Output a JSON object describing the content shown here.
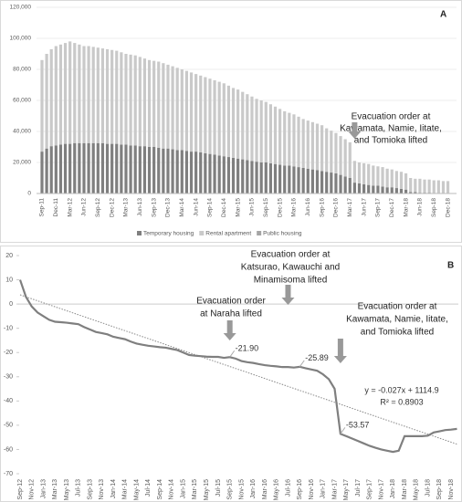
{
  "chart_data": [
    {
      "type": "bar",
      "stacked": true,
      "panel": "A",
      "annotation": [
        "Evacuation order at",
        "Kawamata, Namie, Iitate,",
        "and Tomioka lifted"
      ],
      "categories": [
        "Sep-11",
        null,
        null,
        "Dec-11",
        null,
        null,
        "Mar-12",
        null,
        null,
        "Jun-12",
        null,
        null,
        "Sep-12",
        null,
        null,
        "Dec-12",
        null,
        null,
        "Mar-13",
        null,
        null,
        "Jun-13",
        null,
        null,
        "Sep-13",
        null,
        null,
        "Dec-13",
        null,
        null,
        "Mar-14",
        null,
        null,
        "Jun-14",
        null,
        null,
        "Sep-14",
        null,
        null,
        "Dec-14",
        null,
        null,
        "Mar-15",
        null,
        null,
        "Jun-15",
        null,
        null,
        "Sep-15",
        null,
        null,
        "Dec-15",
        null,
        null,
        "Mar-16",
        null,
        null,
        "Jun-16",
        null,
        null,
        "Sep-16",
        null,
        null,
        "Dec-16",
        null,
        null,
        "Mar-17",
        null,
        null,
        "Jun-17",
        null,
        null,
        "Sep-17",
        null,
        null,
        "Dec-17",
        null,
        null,
        "Mar-18",
        null,
        null,
        "Jun-18",
        null,
        null,
        "Sep-18",
        null,
        null,
        "Dec-18"
      ],
      "series": [
        {
          "name": "Temporary housing",
          "color": "#7f7f7f",
          "values": [
            27000,
            29000,
            30500,
            31000,
            31500,
            32000,
            32000,
            32500,
            32500,
            32500,
            32500,
            32500,
            32500,
            32500,
            32000,
            32000,
            32000,
            31500,
            31500,
            31000,
            31000,
            30500,
            30500,
            30000,
            30000,
            29500,
            29000,
            29000,
            28500,
            28000,
            28000,
            27500,
            27000,
            27000,
            26500,
            26000,
            25500,
            25000,
            24500,
            24000,
            23500,
            23000,
            22500,
            22000,
            21500,
            21000,
            20500,
            20000,
            20000,
            19500,
            19000,
            18500,
            18000,
            18000,
            17500,
            17000,
            16500,
            16000,
            15500,
            15000,
            14500,
            14000,
            13500,
            13000,
            12000,
            11000,
            10000,
            7000,
            6500,
            6000,
            5500,
            5000,
            5000,
            4500,
            4000,
            4000,
            3500,
            3000,
            2500,
            1000,
            1000,
            500,
            500,
            500,
            0,
            0,
            0,
            0
          ]
        },
        {
          "name": "Rental apartment",
          "color": "#c9c9c9",
          "values": [
            59000,
            61000,
            62500,
            64000,
            64500,
            65000,
            66000,
            64500,
            63500,
            62500,
            62500,
            62000,
            61500,
            61000,
            61000,
            60500,
            60000,
            59500,
            58500,
            58500,
            58000,
            57500,
            56500,
            56000,
            55500,
            55500,
            55000,
            54000,
            53500,
            53000,
            52000,
            51500,
            51000,
            50000,
            49500,
            49000,
            48500,
            48000,
            47500,
            47000,
            46000,
            45000,
            44500,
            43500,
            42500,
            41500,
            40500,
            40000,
            39000,
            38000,
            37000,
            36000,
            35000,
            34000,
            33500,
            32500,
            31500,
            31000,
            30500,
            30000,
            29500,
            28000,
            27000,
            26000,
            25000,
            24000,
            23000,
            14000,
            13500,
            13500,
            13500,
            13000,
            12500,
            12500,
            12000,
            11500,
            11000,
            11000,
            10500,
            9000,
            8500,
            9000,
            8500,
            8500,
            8500,
            8500,
            8000,
            8000
          ]
        },
        {
          "name": "Public housing",
          "color": "#a5a5a5",
          "values": [
            0,
            0,
            0,
            0,
            0,
            0,
            0,
            0,
            0,
            0,
            0,
            0,
            0,
            0,
            0,
            0,
            0,
            0,
            0,
            0,
            0,
            0,
            0,
            0,
            0,
            0,
            0,
            0,
            0,
            0,
            0,
            0,
            0,
            0,
            0,
            0,
            0,
            0,
            0,
            0,
            0,
            0,
            0,
            0,
            0,
            0,
            0,
            0,
            0,
            0,
            0,
            0,
            0,
            0,
            0,
            0,
            0,
            0,
            0,
            0,
            0,
            0,
            0,
            0,
            0,
            0,
            0,
            0,
            0,
            0,
            0,
            0,
            0,
            0,
            0,
            0,
            0,
            0,
            0,
            0,
            0,
            0,
            0,
            0,
            0,
            0,
            0,
            0
          ]
        }
      ],
      "ylim": [
        0,
        120000
      ],
      "yticks": [
        0,
        {
          "value": 20000,
          "label": "20,000"
        },
        {
          "value": 40000,
          "label": "40,000"
        },
        {
          "value": 60000,
          "label": "60,000"
        },
        {
          "value": 80000,
          "label": "80,000"
        },
        {
          "value": 100000,
          "label": "100,000"
        },
        {
          "value": 120000,
          "label": "120,000"
        }
      ]
    },
    {
      "type": "line",
      "panel": "B",
      "color": "#7f7f7f",
      "annotations": [
        [
          "Evacuation order",
          "at Naraha lifted"
        ],
        [
          "Katsurao, Kawauchi and",
          "Minamisoma lifted"
        ],
        [
          "Evacuation order at",
          "Kawamata, Namie, Iitate,",
          "and Tomioka lifted"
        ]
      ],
      "annotation_top": "Evacuation order at",
      "trend_label": "y = -0.027x + 1114.9",
      "r2_label": "R² = 0.8903",
      "trend_values": [
        3.8,
        -57.8
      ],
      "categories": [
        "Sep-12",
        null,
        "Nov-12",
        null,
        "Jan-13",
        null,
        "Mar-13",
        null,
        "May-13",
        null,
        "Jul-13",
        null,
        "Sep-13",
        null,
        "Nov-13",
        null,
        "Jan-14",
        null,
        "Mar-14",
        null,
        "May-14",
        null,
        "Jul-14",
        null,
        "Sep-14",
        null,
        "Nov-14",
        null,
        "Jan-15",
        null,
        "Mar-15",
        null,
        "May-15",
        null,
        "Jul-15",
        null,
        "Sep-15",
        null,
        "Nov-15",
        null,
        "Jan-16",
        null,
        "Mar-16",
        null,
        "May-16",
        null,
        "Jul-16",
        null,
        "Sep-16",
        null,
        "Nov-16",
        null,
        "Jan-17",
        null,
        "Mar-17",
        null,
        "May-17",
        null,
        "Jul-17",
        null,
        "Sep-17",
        null,
        "Nov-17",
        null,
        "Jan-18",
        null,
        "Mar-18",
        null,
        "May-18",
        null,
        "Jul-18",
        null,
        "Sep-18",
        null,
        "Nov-18",
        null
      ],
      "values": [
        10,
        3,
        -1,
        -3.5,
        -5,
        -6.5,
        -7.3,
        -7.5,
        -7.7,
        -8,
        -8.3,
        -9.5,
        -10.5,
        -11.5,
        -12,
        -12.5,
        -13.5,
        -14,
        -14.5,
        -15.5,
        -16.3,
        -16.8,
        -17.2,
        -17.5,
        -17.8,
        -18,
        -18.5,
        -19,
        -20,
        -21,
        -21.3,
        -21.5,
        -21.7,
        -21.8,
        -21.8,
        -22.2,
        -21.9,
        -22.5,
        -23.5,
        -24,
        -24.3,
        -24.8,
        -25.2,
        -25.5,
        -25.7,
        -26,
        -26,
        -26.2,
        -25.89,
        -26.5,
        -27,
        -27.5,
        -29,
        -31,
        -35,
        -53.57,
        -54.5,
        -55.5,
        -56.5,
        -57.5,
        -58.5,
        -59.3,
        -60,
        -60.5,
        -61,
        -60.5,
        -54.5,
        -54.5,
        -54.5,
        -54.5,
        -54.3,
        -53,
        -52.5,
        -52,
        -51.8,
        -51.5
      ],
      "value_labels": [
        null,
        null,
        null,
        null,
        null,
        null,
        null,
        null,
        null,
        null,
        null,
        null,
        null,
        null,
        null,
        null,
        null,
        null,
        null,
        null,
        null,
        null,
        null,
        null,
        null,
        null,
        null,
        null,
        null,
        null,
        null,
        null,
        null,
        null,
        null,
        null,
        "-21.90",
        null,
        null,
        null,
        null,
        null,
        null,
        null,
        null,
        null,
        null,
        null,
        "-25.89",
        null,
        null,
        null,
        null,
        null,
        null,
        "-53.57",
        null,
        null,
        null,
        null,
        null,
        null,
        null,
        null,
        null,
        null,
        null,
        null,
        null,
        null,
        null,
        null,
        null,
        null,
        null,
        null
      ],
      "ylim": [
        -70,
        20
      ],
      "yticks": [
        -70,
        -60,
        -50,
        -40,
        -30,
        -20,
        -10,
        0,
        10,
        20
      ]
    }
  ]
}
